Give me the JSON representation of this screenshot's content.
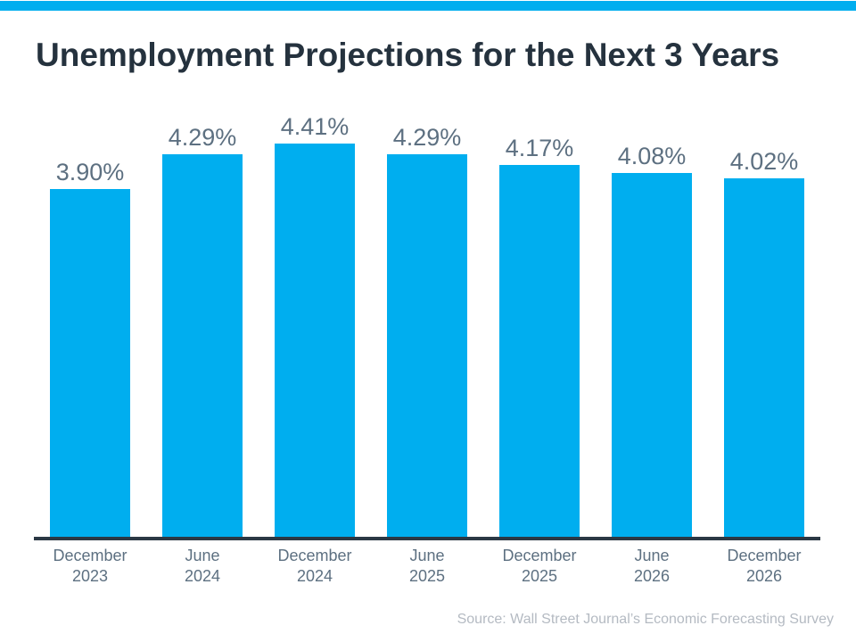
{
  "banner": {
    "color": "#00AEEF"
  },
  "chart_data": {
    "type": "bar",
    "title": "Unemployment Projections for the Next 3 Years",
    "categories": [
      "December\n2023",
      "June\n2024",
      "December\n2024",
      "June\n2025",
      "December\n2025",
      "June\n2026",
      "December\n2026"
    ],
    "values": [
      3.9,
      4.29,
      4.41,
      4.29,
      4.17,
      4.08,
      4.02
    ],
    "value_labels": [
      "3.90%",
      "4.29%",
      "4.41%",
      "4.29%",
      "4.17%",
      "4.08%",
      "4.02%"
    ],
    "xlabel": "",
    "ylabel": "",
    "ylim": [
      0,
      4.75
    ],
    "grid": false,
    "legend": false,
    "bar_color": "#00AEEF",
    "value_label_color": "#5D7081",
    "category_label_color": "#5D7081",
    "axis_color": "#2B3844",
    "title_color": "#25323E"
  },
  "source": "Source: Wall Street Journal’s Economic Forecasting Survey",
  "source_color": "#B4BAC2"
}
